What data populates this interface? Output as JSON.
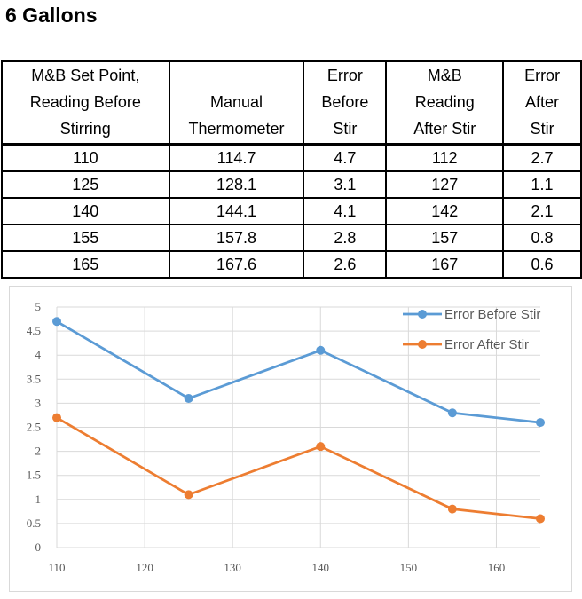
{
  "title": "6 Gallons",
  "table": {
    "headers": [
      [
        "M&B Set Point,",
        "Reading Before",
        "Stirring"
      ],
      [
        "Manual",
        "Thermometer"
      ],
      [
        "Error",
        "Before",
        "Stir"
      ],
      [
        "M&B",
        "Reading",
        "After Stir"
      ],
      [
        "Error",
        "After",
        "Stir"
      ]
    ],
    "rows": [
      [
        "110",
        "114.7",
        "4.7",
        "112",
        "2.7"
      ],
      [
        "125",
        "128.1",
        "3.1",
        "127",
        "1.1"
      ],
      [
        "140",
        "144.1",
        "4.1",
        "142",
        "2.1"
      ],
      [
        "155",
        "157.8",
        "2.8",
        "157",
        "0.8"
      ],
      [
        "165",
        "167.6",
        "2.6",
        "167",
        "0.6"
      ]
    ]
  },
  "chart_data": {
    "type": "line",
    "title": "",
    "xlabel": "",
    "ylabel": "",
    "x": [
      110,
      125,
      140,
      155,
      165
    ],
    "series": [
      {
        "name": "Error Before Stir",
        "values": [
          4.7,
          3.1,
          4.1,
          2.8,
          2.6
        ],
        "color": "#5b9bd5"
      },
      {
        "name": "Error After Stir",
        "values": [
          2.7,
          1.1,
          2.1,
          0.8,
          0.6
        ],
        "color": "#ed7d31"
      }
    ],
    "xlim": [
      110,
      165
    ],
    "ylim": [
      0,
      5
    ],
    "xticks": [
      110,
      120,
      130,
      140,
      150,
      160
    ],
    "yticks": [
      0,
      0.5,
      1,
      1.5,
      2,
      2.5,
      3,
      3.5,
      4,
      4.5,
      5
    ],
    "grid": true,
    "legend": "top-right"
  }
}
